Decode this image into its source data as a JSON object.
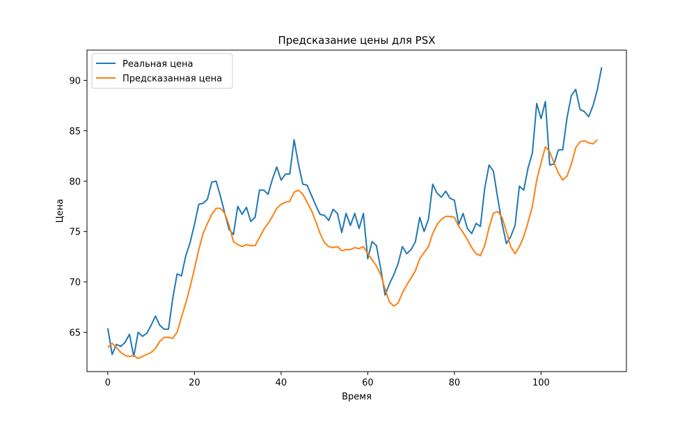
{
  "chart_data": {
    "type": "line",
    "title": "Предсказание цены для PSX",
    "xlabel": "Время",
    "ylabel": "Цена",
    "xlim": [
      -4.8,
      119.7
    ],
    "ylim": [
      61.1,
      93.0
    ],
    "xticks": [
      0,
      20,
      40,
      60,
      80,
      100
    ],
    "yticks": [
      65,
      70,
      75,
      80,
      85,
      90
    ],
    "grid": false,
    "legend_position": "top-left",
    "series": [
      {
        "name": "Реальная цена",
        "color": "#1f77b4",
        "values": [
          65.4,
          62.8,
          63.8,
          63.6,
          64.0,
          64.8,
          62.6,
          65.0,
          64.6,
          64.9,
          65.7,
          66.6,
          65.7,
          65.3,
          65.3,
          68.4,
          70.8,
          70.6,
          72.6,
          73.9,
          75.7,
          77.7,
          77.8,
          78.2,
          79.9,
          80.0,
          78.5,
          76.8,
          75.2,
          74.7,
          77.5,
          76.7,
          77.4,
          76.0,
          76.4,
          79.1,
          79.1,
          78.7,
          80.2,
          81.4,
          80.1,
          80.7,
          80.7,
          84.1,
          81.7,
          79.7,
          79.6,
          78.6,
          77.6,
          76.7,
          76.6,
          76.1,
          77.2,
          76.8,
          74.9,
          76.8,
          75.6,
          76.8,
          75.3,
          76.8,
          72.3,
          74.0,
          73.6,
          71.3,
          68.7,
          69.8,
          70.7,
          71.8,
          73.5,
          72.8,
          73.2,
          74.0,
          76.4,
          75.0,
          76.2,
          79.7,
          78.8,
          78.4,
          79.0,
          78.3,
          78.1,
          75.7,
          76.8,
          75.3,
          74.8,
          75.8,
          75.5,
          79.3,
          81.6,
          81.0,
          78.3,
          75.8,
          73.8,
          74.5,
          75.6,
          79.5,
          79.1,
          81.3,
          82.8,
          87.7,
          86.2,
          87.9,
          81.6,
          81.7,
          83.1,
          83.1,
          86.3,
          88.5,
          89.1,
          87.1,
          86.9,
          86.4,
          87.5,
          89.1,
          91.3
        ]
      },
      {
        "name": "Предсказанная цена",
        "color": "#ff7f0e",
        "values": [
          63.5,
          63.9,
          63.5,
          63.0,
          62.7,
          62.6,
          62.7,
          62.4,
          62.6,
          62.8,
          63.0,
          63.4,
          64.1,
          64.5,
          64.5,
          64.4,
          65.0,
          66.5,
          67.9,
          69.5,
          71.3,
          73.2,
          74.8,
          75.8,
          76.7,
          77.3,
          77.3,
          76.8,
          75.6,
          74.0,
          73.7,
          73.5,
          73.7,
          73.6,
          73.6,
          74.4,
          75.2,
          75.8,
          76.5,
          77.3,
          77.7,
          77.9,
          78.0,
          78.9,
          79.1,
          78.7,
          77.9,
          77.1,
          76.0,
          74.8,
          73.9,
          73.5,
          73.4,
          73.5,
          73.1,
          73.2,
          73.2,
          73.4,
          73.3,
          73.5,
          72.8,
          72.2,
          71.6,
          70.7,
          69.3,
          68.0,
          67.6,
          67.9,
          68.9,
          69.7,
          70.4,
          71.1,
          72.3,
          72.9,
          73.5,
          74.8,
          75.7,
          76.2,
          76.5,
          76.5,
          76.4,
          75.5,
          74.9,
          74.2,
          73.4,
          72.8,
          72.6,
          73.6,
          75.4,
          76.8,
          77.0,
          76.4,
          75.0,
          73.5,
          72.8,
          73.5,
          74.5,
          75.9,
          77.5,
          80.1,
          81.8,
          83.4,
          82.9,
          81.8,
          80.8,
          80.1,
          80.5,
          81.7,
          83.3,
          83.9,
          84.0,
          83.8,
          83.7,
          84.1
        ]
      }
    ]
  }
}
